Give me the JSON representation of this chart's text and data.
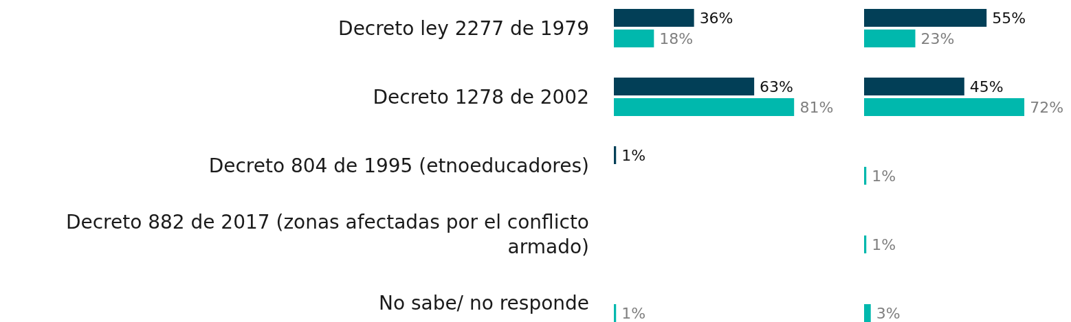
{
  "chart_data": [
    {
      "type": "bar",
      "orientation": "horizontal",
      "categories": [
        "Decreto ley 2277 de 1979",
        "Decreto 1278 de 2002",
        "Decreto 804 de 1995 (etnoeducadores)",
        "Decreto 882 de 2017 (zonas afectadas por el conflicto armado)",
        "No sabe/ no responde"
      ],
      "series": [
        {
          "color": "#023f57",
          "values": [
            36,
            63,
            1,
            null,
            null
          ],
          "value_labels": [
            "36%",
            "63%",
            "1%",
            null,
            null
          ]
        },
        {
          "color": "#00b8ad",
          "values": [
            18,
            81,
            null,
            null,
            1
          ],
          "value_labels": [
            "18%",
            "81%",
            null,
            null,
            "1%"
          ]
        }
      ],
      "tick_labels": "y"
    },
    {
      "type": "bar",
      "orientation": "horizontal",
      "categories": [
        null,
        null,
        null,
        null,
        null
      ],
      "series": [
        {
          "color": "#023f57",
          "values": [
            55,
            45,
            null,
            null,
            null
          ],
          "value_labels": [
            "55%",
            "45%",
            null,
            null,
            null
          ]
        },
        {
          "color": "#00b8ad",
          "values": [
            23,
            72,
            1,
            1,
            3
          ],
          "value_labels": [
            "23%",
            "72%",
            "1%",
            "1%",
            "3%"
          ]
        }
      ],
      "tick_labels": false
    }
  ]
}
